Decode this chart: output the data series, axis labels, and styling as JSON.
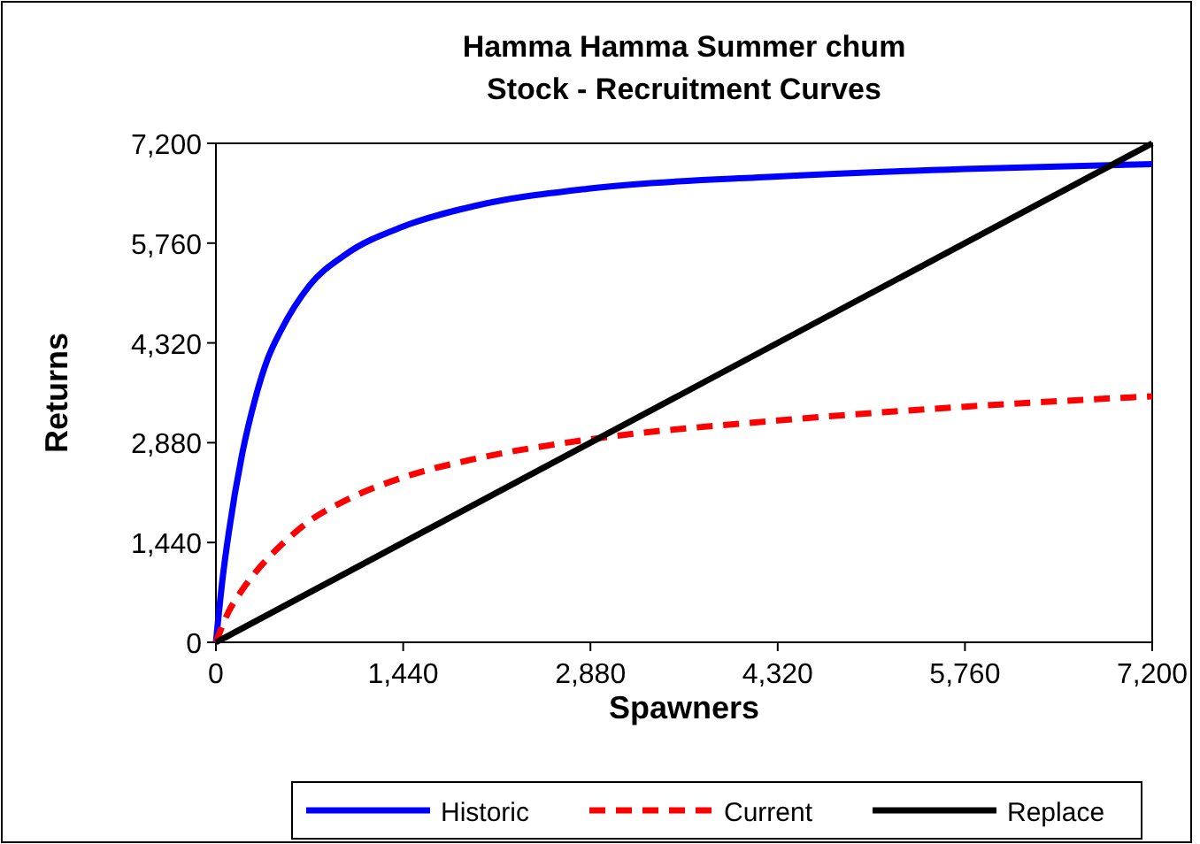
{
  "chart_data": {
    "type": "line",
    "title": "Hamma Hamma Summer chum\nStock - Recruitment Curves",
    "xlabel": "Spawners",
    "ylabel": "Returns",
    "xlim": [
      0,
      7200
    ],
    "xticks": [
      {
        "value": 0,
        "label": "0"
      },
      {
        "value": 1440,
        "label": "1,440"
      },
      {
        "value": 2880,
        "label": "2,880"
      },
      {
        "value": 4320,
        "label": "4,320"
      },
      {
        "value": 5760,
        "label": "5,760"
      },
      {
        "value": 7200,
        "label": "7,200"
      }
    ],
    "ylim": [
      0,
      7200
    ],
    "yticks": [
      {
        "value": 0,
        "label": "0"
      },
      {
        "value": 1440,
        "label": "1,440"
      },
      {
        "value": 2880,
        "label": "2,880"
      },
      {
        "value": 4320,
        "label": "4,320"
      },
      {
        "value": 5760,
        "label": "5,760"
      },
      {
        "value": 7200,
        "label": "7,200"
      }
    ],
    "grid": false,
    "legend": "bottom",
    "series": [
      {
        "name": "Historic",
        "color": "#0000ff",
        "line_style": "solid",
        "x": [
          0,
          50,
          100,
          200,
          300,
          400,
          500,
          720,
          1000,
          1440,
          2000,
          2880,
          4320,
          5760,
          7200
        ],
        "values": [
          0,
          900,
          1600,
          2700,
          3500,
          4100,
          4500,
          5150,
          5600,
          6000,
          6300,
          6550,
          6720,
          6830,
          6900
        ]
      },
      {
        "name": "Current",
        "color": "#ff0000",
        "line_style": "dashed",
        "x": [
          0,
          100,
          200,
          300,
          500,
          720,
          1000,
          1440,
          2000,
          2880,
          4320,
          5760,
          7200
        ],
        "values": [
          0,
          450,
          750,
          1000,
          1400,
          1750,
          2050,
          2380,
          2650,
          2930,
          3200,
          3400,
          3550
        ]
      },
      {
        "name": "Replace",
        "color": "#000000",
        "line_style": "solid",
        "x": [
          0,
          7200
        ],
        "values": [
          0,
          7200
        ]
      }
    ]
  }
}
